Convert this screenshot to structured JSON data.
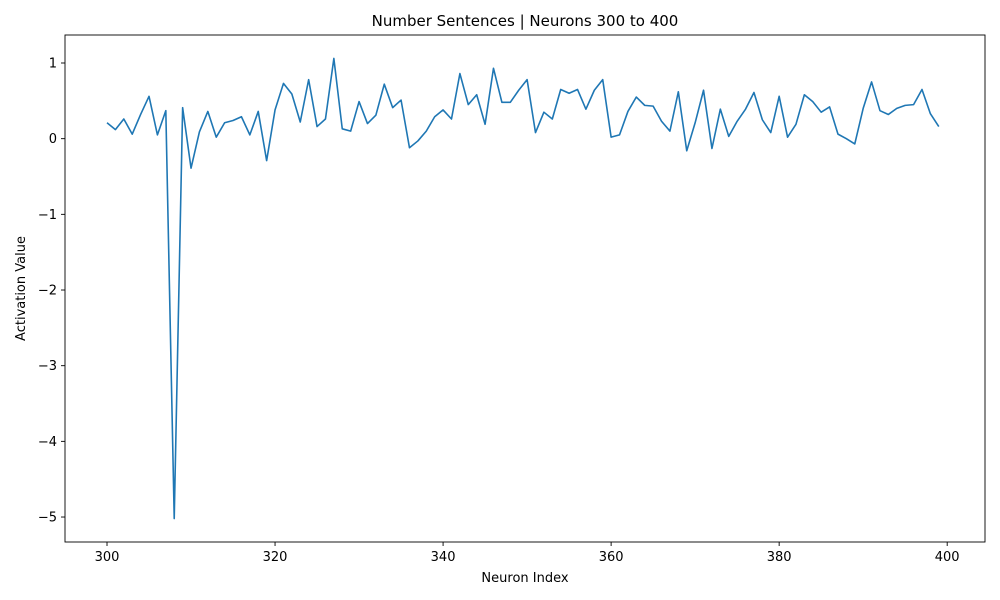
{
  "chart_data": {
    "type": "line",
    "title": "Number Sentences | Neurons 300 to 400",
    "xlabel": "Neuron Index",
    "ylabel": "Activation Value",
    "xlim": [
      295,
      404.5
    ],
    "ylim": [
      -5.33,
      1.37
    ],
    "xticks": [
      300,
      320,
      340,
      360,
      380,
      400
    ],
    "xtick_labels": [
      "300",
      "320",
      "340",
      "360",
      "380",
      "400"
    ],
    "yticks": [
      1,
      0,
      -1,
      -2,
      -3,
      -4,
      -5
    ],
    "ytick_labels": [
      "1",
      "0",
      "−1",
      "−2",
      "−3",
      "−4",
      "−5"
    ],
    "grid": false,
    "line_color": "#1f77b4",
    "series": [
      {
        "x_start": 300,
        "values": [
          0.21,
          0.12,
          0.26,
          0.06,
          0.32,
          0.56,
          0.05,
          0.37,
          -5.02,
          0.41,
          -0.39,
          0.09,
          0.36,
          0.02,
          0.21,
          0.24,
          0.29,
          0.05,
          0.36,
          -0.29,
          0.38,
          0.73,
          0.59,
          0.22,
          0.78,
          0.16,
          0.26,
          1.06,
          0.13,
          0.1,
          0.49,
          0.2,
          0.31,
          0.72,
          0.41,
          0.51,
          -0.12,
          -0.03,
          0.1,
          0.29,
          0.38,
          0.26,
          0.86,
          0.45,
          0.58,
          0.19,
          0.93,
          0.48,
          0.48,
          0.64,
          0.78,
          0.08,
          0.35,
          0.26,
          0.65,
          0.6,
          0.65,
          0.39,
          0.64,
          0.78,
          0.02,
          0.05,
          0.36,
          0.55,
          0.44,
          0.43,
          0.23,
          0.1,
          0.62,
          -0.16,
          0.21,
          0.64,
          -0.13,
          0.39,
          0.03,
          0.23,
          0.39,
          0.61,
          0.25,
          0.08,
          0.56,
          0.02,
          0.19,
          0.58,
          0.49,
          0.35,
          0.42,
          0.06,
          0.0,
          -0.07,
          0.4,
          0.75,
          0.37,
          0.32,
          0.4,
          0.44,
          0.45,
          0.65,
          0.33,
          0.16
        ]
      }
    ]
  }
}
